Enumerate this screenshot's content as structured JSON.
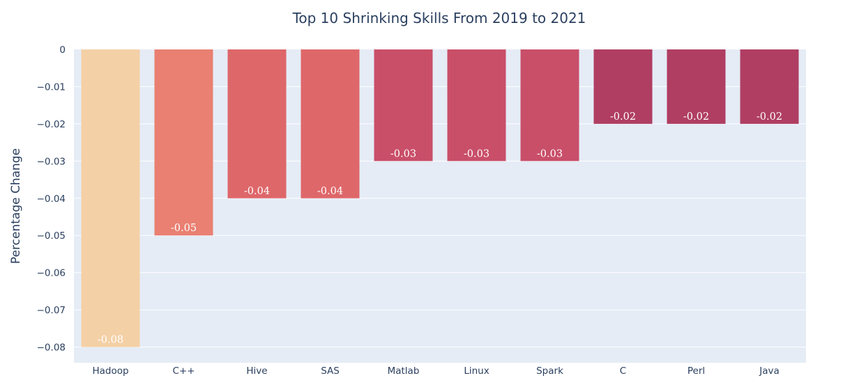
{
  "chart_data": {
    "type": "bar",
    "title": "Top 10 Shrinking Skills From 2019 to 2021",
    "xlabel": "",
    "ylabel": "Percentage Change",
    "categories": [
      "Hadoop",
      "C++",
      "Hive",
      "SAS",
      "Matlab",
      "Linux",
      "Spark",
      "C",
      "Perl",
      "Java"
    ],
    "values": [
      -0.08,
      -0.05,
      -0.04,
      -0.04,
      -0.03,
      -0.03,
      -0.03,
      -0.02,
      -0.02,
      -0.02
    ],
    "data_labels": [
      "-0.08",
      "-0.05",
      "-0.04",
      "-0.04",
      "-0.03",
      "-0.03",
      "-0.03",
      "-0.02",
      "-0.02",
      "-0.02"
    ],
    "ylim": [
      -0.0842,
      0
    ],
    "yticks": [
      0,
      -0.01,
      -0.02,
      -0.03,
      -0.04,
      -0.05,
      -0.06,
      -0.07,
      -0.08
    ],
    "ytick_labels": [
      "0",
      "−0.01",
      "−0.02",
      "−0.03",
      "−0.04",
      "−0.05",
      "−0.06",
      "−0.07",
      "−0.08"
    ],
    "grid": true,
    "bar_colors": [
      "#f4d0a6",
      "#e98072",
      "#de676a",
      "#de676a",
      "#c94f69",
      "#c94f69",
      "#c94f69",
      "#b03e63",
      "#b03e63",
      "#b03e63"
    ],
    "plot_background": "#e5ecf6",
    "text_color": "#2a3f5f"
  }
}
